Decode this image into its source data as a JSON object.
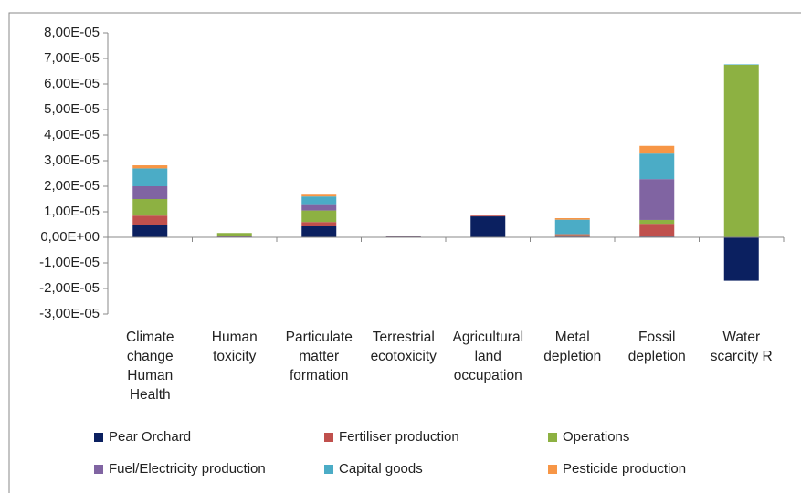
{
  "chart_data": {
    "type": "stacked_bar",
    "categories": [
      "Climate change Human Health",
      "Human toxicity",
      "Particulate matter formation",
      "Terrestrial ecotoxicity",
      "Agricultural land occupation",
      "Metal depletion",
      "Fossil depletion",
      "Water scarcity R"
    ],
    "series": [
      {
        "name": "Pear Orchard",
        "color": "#0b2060",
        "values": [
          5e-06,
          3e-07,
          4.5e-06,
          3e-07,
          8.2e-06,
          3e-07,
          3e-07,
          -1.7e-05
        ]
      },
      {
        "name": "Fertiliser production",
        "color": "#c0504d",
        "values": [
          3.5e-06,
          2e-07,
          1.5e-06,
          4e-07,
          3e-07,
          7e-07,
          5e-06,
          0
        ]
      },
      {
        "name": "Operations",
        "color": "#8db142",
        "values": [
          6.5e-06,
          1.2e-06,
          4.5e-06,
          0,
          0,
          2e-07,
          1.5e-06,
          6.75e-05
        ]
      },
      {
        "name": "Fuel/Electricity production",
        "color": "#8064a2",
        "values": [
          5e-06,
          0,
          2.5e-06,
          0,
          0,
          2e-07,
          1.6e-05,
          0
        ]
      },
      {
        "name": "Capital goods",
        "color": "#4bacc6",
        "values": [
          7e-06,
          0,
          3e-06,
          0,
          0,
          5.5e-06,
          1e-05,
          2e-07
        ]
      },
      {
        "name": "Pesticide production",
        "color": "#f79646",
        "values": [
          1.2e-06,
          0,
          7e-07,
          0,
          0,
          6e-07,
          3e-06,
          0
        ]
      }
    ],
    "ylim": [
      -3e-05,
      8e-05
    ],
    "yticks": [
      {
        "value": -3e-05,
        "label": "-3,00E-05"
      },
      {
        "value": -2e-05,
        "label": "-2,00E-05"
      },
      {
        "value": -1e-05,
        "label": "-1,00E-05"
      },
      {
        "value": 0,
        "label": "0,00E+00"
      },
      {
        "value": 1e-05,
        "label": "1,00E-05"
      },
      {
        "value": 2e-05,
        "label": "2,00E-05"
      },
      {
        "value": 3e-05,
        "label": "3,00E-05"
      },
      {
        "value": 4e-05,
        "label": "4,00E-05"
      },
      {
        "value": 5e-05,
        "label": "5,00E-05"
      },
      {
        "value": 6e-05,
        "label": "6,00E-05"
      },
      {
        "value": 7e-05,
        "label": "7,00E-05"
      },
      {
        "value": 8e-05,
        "label": "8,00E-05"
      }
    ],
    "grid": false,
    "legend": "bottom"
  }
}
